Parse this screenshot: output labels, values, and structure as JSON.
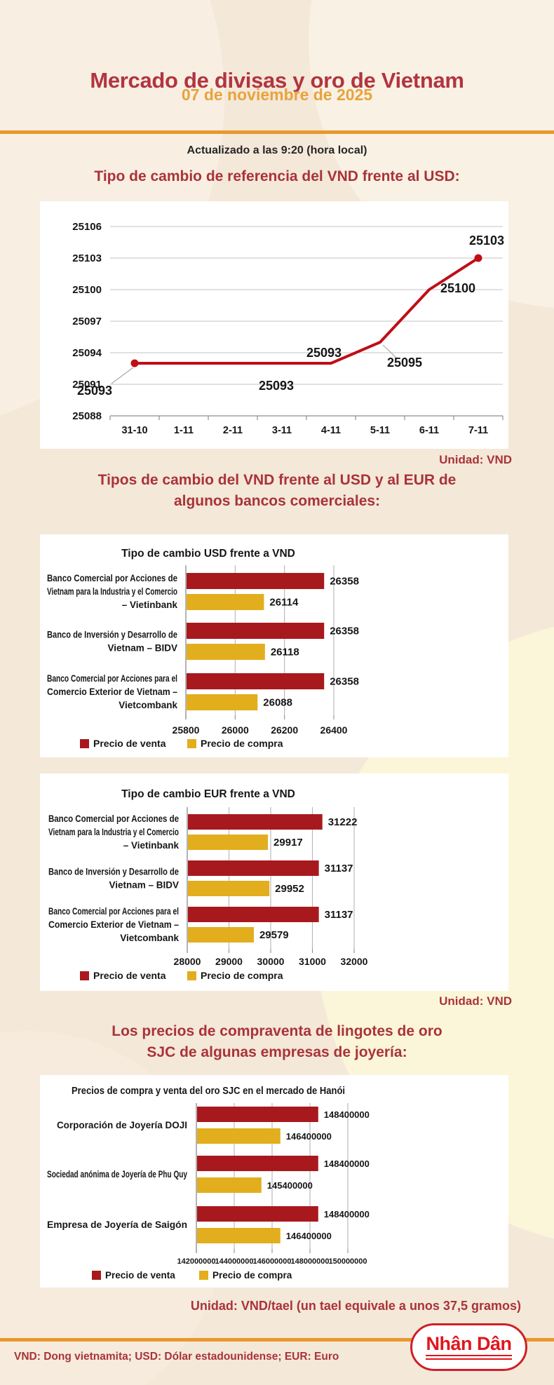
{
  "header": {
    "title": "Mercado de divisas y oro de Vietnam",
    "date": "07 de noviembre de 2025",
    "updated": "Actualizado a las 9:20 (hora local)"
  },
  "sections": {
    "reference_rate": {
      "heading": "Tipo de cambio de referencia del VND frente al USD:",
      "unit_note": "Unidad: VND"
    },
    "bank_rates": {
      "heading_line1": "Tipos de cambio del VND frente al USD y al EUR de",
      "heading_line2": "algunos bancos comerciales:",
      "unit_note": "Unidad: VND"
    },
    "gold": {
      "heading_line1": "Los precios de compraventa de lingotes de oro",
      "heading_line2": "SJC de algunas empresas de joyería:",
      "unit_note": "Unidad: VND/tael (un tael equivale a unos 37,5 gramos)"
    }
  },
  "footer": {
    "note": "VND: Dong vietnamita; USD: Dólar estadounidense; EUR: Euro",
    "brand": "Nhân Dân"
  },
  "colors": {
    "sell": "#A8191E",
    "buy": "#E2AE1E",
    "line": "#C00E17",
    "accent_orange": "#E8982E",
    "heading_red": "#A93339",
    "grid": "#B5B5B5",
    "axis": "#8F8F8F"
  },
  "chart_data": [
    {
      "type": "line",
      "title": "Tipo de cambio de referencia del VND frente al USD",
      "x": [
        "31-10",
        "1-11",
        "2-11",
        "3-11",
        "4-11",
        "5-11",
        "6-11",
        "7-11"
      ],
      "values": [
        25093,
        25093,
        25093,
        25093,
        25093,
        25095,
        25100,
        25103
      ],
      "ylim": [
        25088,
        25106
      ],
      "yticks": [
        25106,
        25103,
        25100,
        25097,
        25094,
        25091,
        25088
      ],
      "grid": true,
      "unit": "VND"
    },
    {
      "type": "bar",
      "orientation": "horizontal",
      "title": "Tipo de cambio USD frente a VND",
      "categories": [
        [
          "Banco Comercial por Acciones de",
          "Vietnam para la Industria y el Comercio",
          "– Vietinbank"
        ],
        [
          "Banco de Inversión y Desarrollo de",
          "Vietnam – BIDV"
        ],
        [
          "Banco Comercial por Acciones para el",
          "Comercio Exterior de Vietnam –",
          "Vietcombank"
        ]
      ],
      "series": [
        {
          "name": "Precio de venta",
          "values": [
            26358,
            26358,
            26358
          ]
        },
        {
          "name": "Precio de compra",
          "values": [
            26114,
            26118,
            26088
          ]
        }
      ],
      "xticks": [
        25800,
        26000,
        26200,
        26400
      ],
      "xlim": [
        25800,
        26460
      ],
      "unit": "VND"
    },
    {
      "type": "bar",
      "orientation": "horizontal",
      "title": "Tipo de cambio EUR frente a VND",
      "categories": [
        [
          "Banco Comercial por Acciones de",
          "Vietnam para la Industria y el Comercio",
          "– Vietinbank"
        ],
        [
          "Banco de Inversión y Desarrollo de",
          "Vietnam – BIDV"
        ],
        [
          "Banco Comercial por Acciones para el",
          "Comercio Exterior de Vietnam –",
          "Vietcombank"
        ]
      ],
      "series": [
        {
          "name": "Precio de venta",
          "values": [
            31222,
            31137,
            31137
          ]
        },
        {
          "name": "Precio de compra",
          "values": [
            29917,
            29952,
            29579
          ]
        }
      ],
      "xticks": [
        28000,
        29000,
        30000,
        31000,
        32000
      ],
      "xlim": [
        28000,
        32200
      ],
      "unit": "VND"
    },
    {
      "type": "bar",
      "orientation": "horizontal",
      "title": "Precios de compra y venta del oro SJC en el mercado de Hanói",
      "categories": [
        [
          "Corporación de Joyería DOJI"
        ],
        [
          "Sociedad anónima de Joyería de Phu Quy"
        ],
        [
          "Empresa de Joyería de Saigón"
        ]
      ],
      "series": [
        {
          "name": "Precio de venta",
          "values": [
            148400000,
            148400000,
            148400000
          ]
        },
        {
          "name": "Precio de compra",
          "values": [
            146400000,
            145400000,
            146400000
          ]
        }
      ],
      "xticks": [
        142000000,
        144000000,
        146000000,
        148000000,
        150000000
      ],
      "xlim": [
        142000000,
        150200000
      ],
      "unit": "VND/tael"
    }
  ]
}
